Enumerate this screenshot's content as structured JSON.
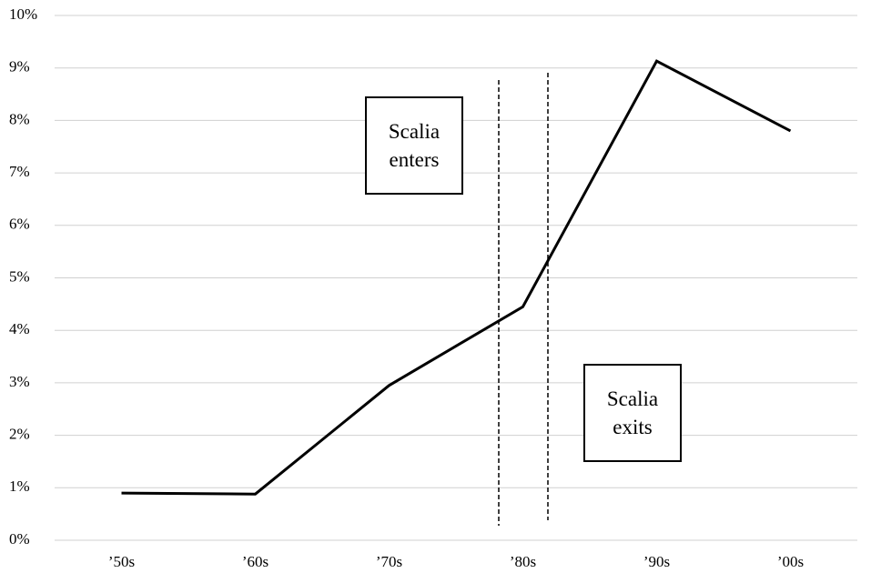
{
  "chart_data": {
    "type": "line",
    "categories": [
      "’50s",
      "’60s",
      "’70s",
      "’80s",
      "’90s",
      "’00s"
    ],
    "series": [
      {
        "name": "Share",
        "color": "#000000",
        "values": [
          0.9,
          0.88,
          2.95,
          4.45,
          9.13,
          7.8
        ]
      }
    ],
    "ylim": [
      0,
      10
    ],
    "yticks": [
      {
        "value": 0,
        "label": "0%"
      },
      {
        "value": 1,
        "label": "1%"
      },
      {
        "value": 2,
        "label": "2%"
      },
      {
        "value": 3,
        "label": "3%"
      },
      {
        "value": 4,
        "label": "4%"
      },
      {
        "value": 5,
        "label": "5%"
      },
      {
        "value": 6,
        "label": "6%"
      },
      {
        "value": 7,
        "label": "7%"
      },
      {
        "value": 8,
        "label": "8%"
      },
      {
        "value": 9,
        "label": "9%"
      },
      {
        "value": 10,
        "label": "10%"
      }
    ],
    "grid": true,
    "annotations": [
      "Scalia enters",
      "Scalia exits"
    ]
  }
}
